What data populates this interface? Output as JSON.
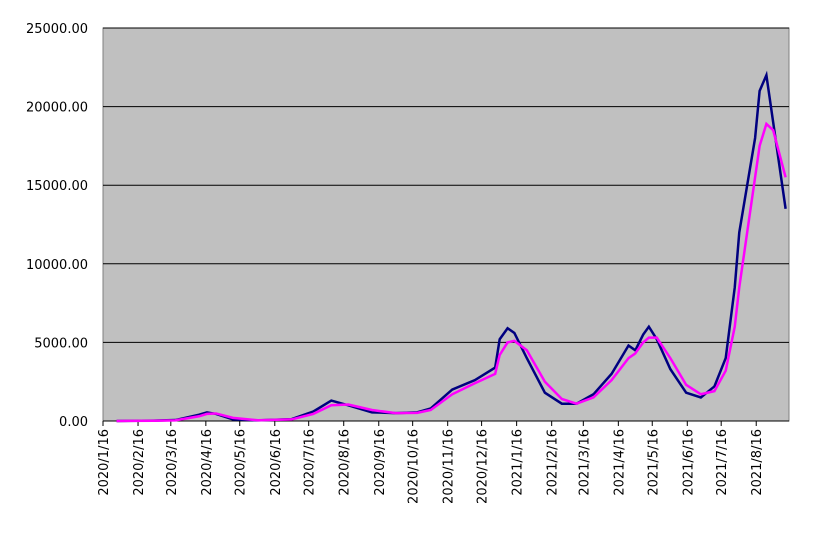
{
  "chart_data": {
    "type": "line",
    "x": [
      "2020/1/28",
      "2020/3/1",
      "2020/3/20",
      "2020/4/10",
      "2020/4/17",
      "2020/4/25",
      "2020/5/10",
      "2020/6/1",
      "2020/7/1",
      "2020/7/20",
      "2020/8/5",
      "2020/8/20",
      "2020/9/10",
      "2020/10/1",
      "2020/10/20",
      "2020/11/1",
      "2020/11/20",
      "2020/12/10",
      "2020/12/28",
      "2021/1/1",
      "2021/1/8",
      "2021/1/14",
      "2021/1/25",
      "2021/2/10",
      "2021/2/25",
      "2021/3/10",
      "2021/3/25",
      "2021/4/10",
      "2021/4/25",
      "2021/5/1",
      "2021/5/8",
      "2021/5/13",
      "2021/5/20",
      "2021/6/1",
      "2021/6/15",
      "2021/6/28",
      "2021/7/10",
      "2021/7/20",
      "2021/7/28",
      "2021/8/1",
      "2021/8/8",
      "2021/8/15",
      "2021/8/19",
      "2021/8/25",
      "2021/8/31",
      "2021/9/11"
    ],
    "series": [
      {
        "color": "#000080",
        "values": [
          0,
          20,
          60,
          400,
          550,
          450,
          100,
          40,
          120,
          600,
          1300,
          1000,
          550,
          500,
          550,
          800,
          2000,
          2600,
          3400,
          5200,
          5900,
          5600,
          4000,
          1800,
          1100,
          1100,
          1700,
          3000,
          4800,
          4500,
          5500,
          6000,
          5200,
          3300,
          1800,
          1500,
          2200,
          4000,
          8500,
          12000,
          15000,
          18000,
          21000,
          22000,
          19000,
          13500
        ]
      },
      {
        "color": "#ff00ff",
        "values": [
          0,
          15,
          40,
          300,
          450,
          480,
          200,
          50,
          100,
          450,
          1000,
          1050,
          700,
          500,
          520,
          700,
          1700,
          2400,
          3000,
          4200,
          5000,
          5100,
          4500,
          2500,
          1400,
          1100,
          1500,
          2600,
          4000,
          4300,
          5000,
          5300,
          5300,
          4000,
          2300,
          1700,
          1900,
          3200,
          6000,
          8500,
          12000,
          15500,
          17500,
          18900,
          18500,
          15500
        ]
      }
    ],
    "xlim": [
      "2020/1/16",
      "2021/9/14"
    ],
    "xticks": [
      "2020/1/16",
      "2020/2/16",
      "2020/3/16",
      "2020/4/16",
      "2020/5/16",
      "2020/6/16",
      "2020/7/16",
      "2020/8/16",
      "2020/9/16",
      "2020/10/16",
      "2020/11/16",
      "2020/12/16",
      "2021/1/16",
      "2021/2/16",
      "2021/3/16",
      "2021/4/16",
      "2021/5/16",
      "2021/6/16",
      "2021/7/16",
      "2021/8/16"
    ],
    "ylim": [
      0,
      25000
    ],
    "yticks": [
      {
        "value": 0,
        "label": "0.00"
      },
      {
        "value": 5000,
        "label": "5000.00"
      },
      {
        "value": 10000,
        "label": "10000.00"
      },
      {
        "value": 15000,
        "label": "15000.00"
      },
      {
        "value": 20000,
        "label": "20000.00"
      },
      {
        "value": 25000,
        "label": "25000.00"
      }
    ],
    "grid": true,
    "plot_background": "#c0c0c0"
  }
}
